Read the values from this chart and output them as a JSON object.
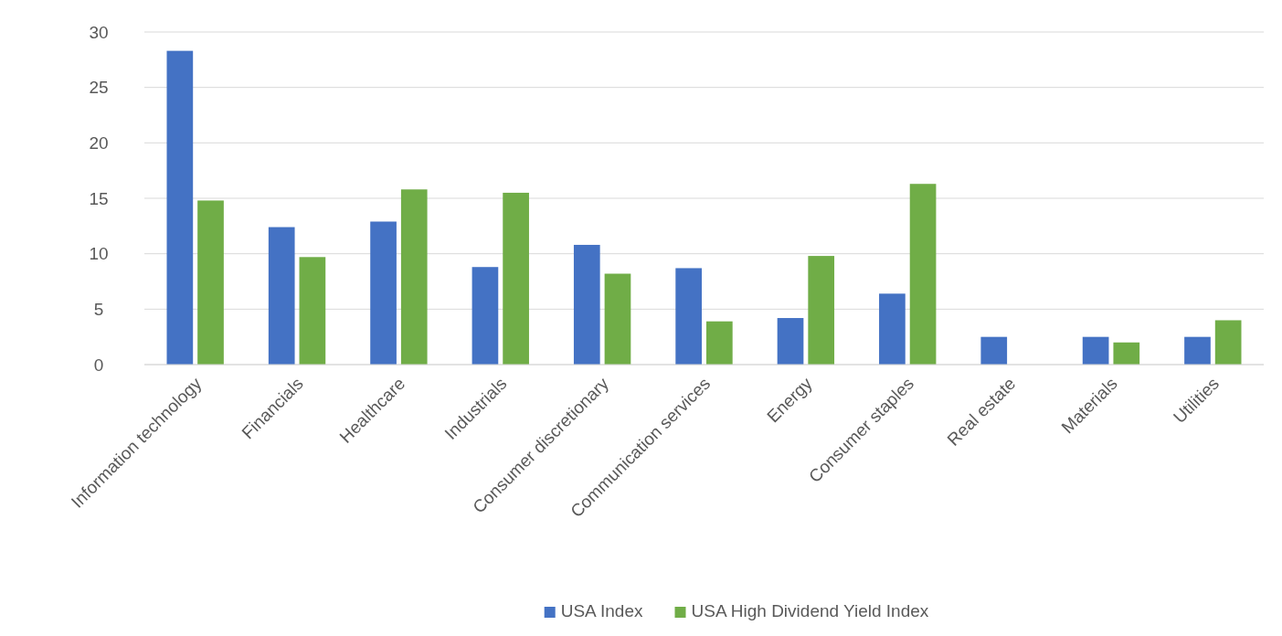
{
  "chart_data": {
    "type": "bar",
    "categories": [
      "Information technology",
      "Financials",
      "Healthcare",
      "Industrials",
      "Consumer discretionary",
      "Communication services",
      "Energy",
      "Consumer staples",
      "Real estate",
      "Materials",
      "Utilities"
    ],
    "series": [
      {
        "name": "USA Index",
        "color": "#4472c4",
        "values": [
          28.3,
          12.4,
          12.9,
          8.8,
          10.8,
          8.7,
          4.2,
          6.4,
          2.5,
          2.5,
          2.5
        ]
      },
      {
        "name": "USA High Dividend Yield Index",
        "color": "#70ad47",
        "values": [
          14.8,
          9.7,
          15.8,
          15.5,
          8.2,
          3.9,
          9.8,
          16.3,
          0,
          2.0,
          4.0
        ]
      }
    ],
    "ylim": [
      0,
      30
    ],
    "yticks": [
      0,
      5,
      10,
      15,
      20,
      25,
      30
    ],
    "grid": "y",
    "legend": "bottom"
  }
}
